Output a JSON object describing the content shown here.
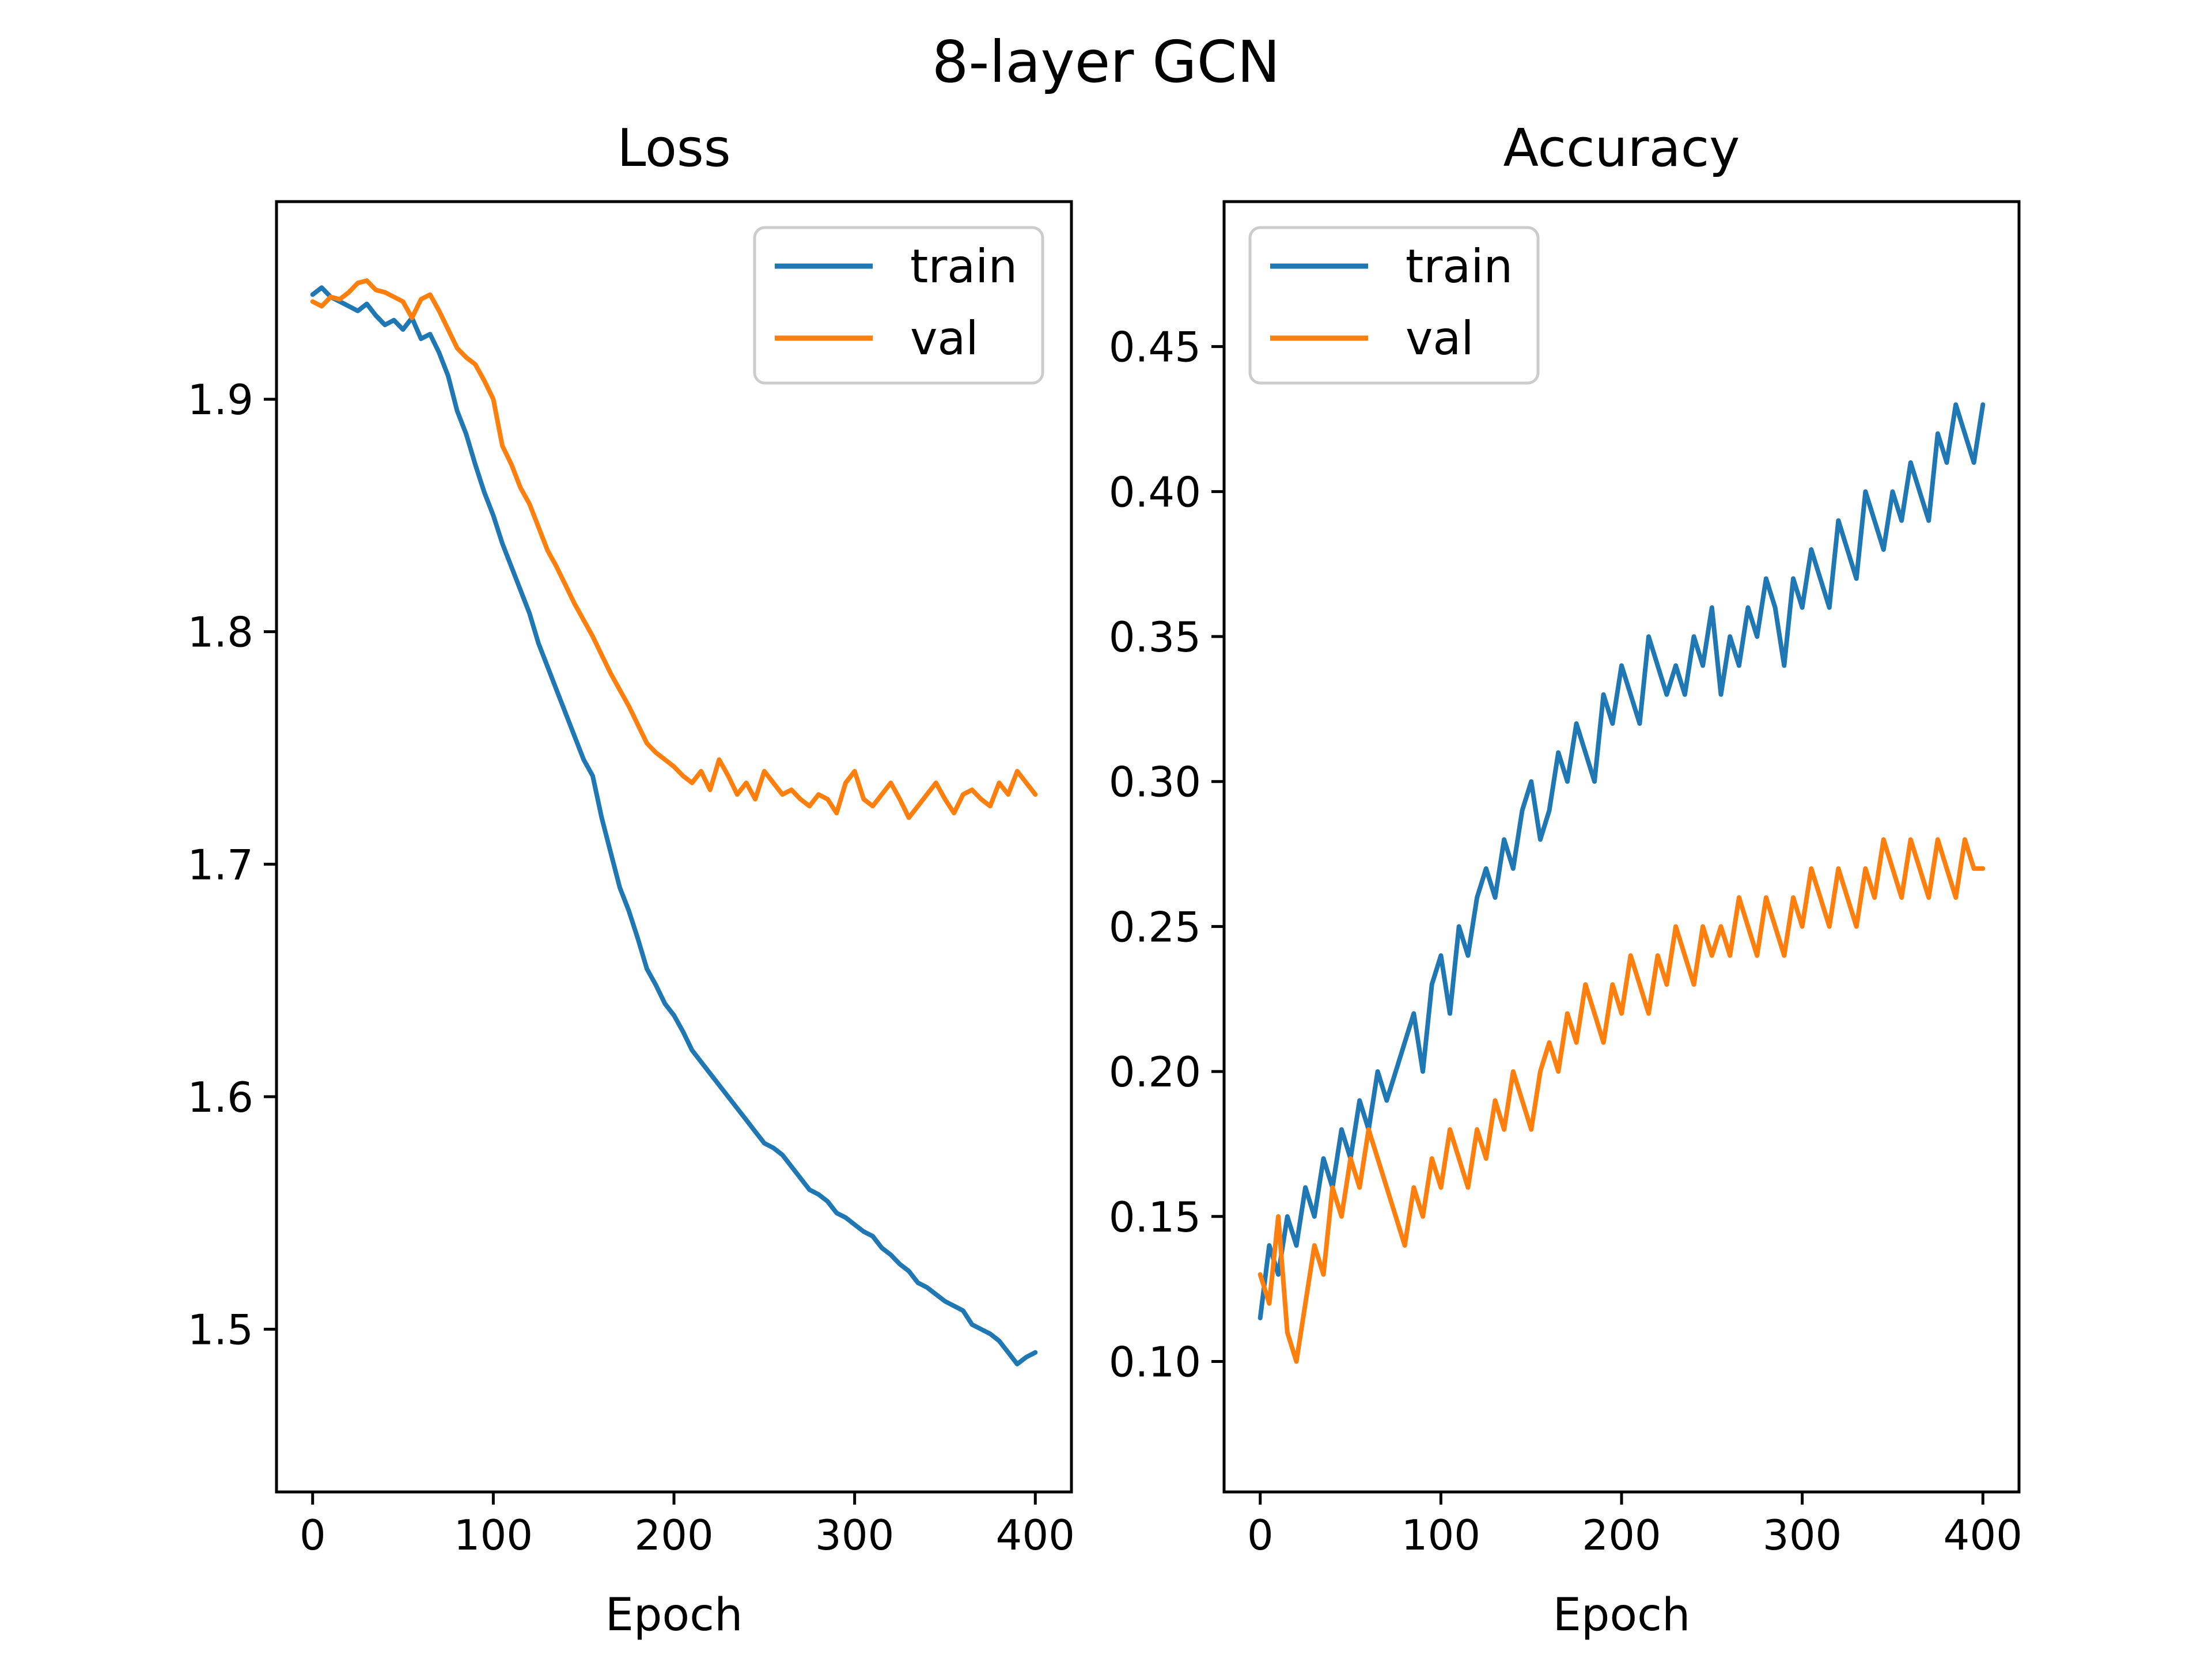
{
  "figure": {
    "title": "8-layer GCN"
  },
  "chart_data": [
    {
      "type": "line",
      "title": "Loss",
      "xlabel": "Epoch",
      "ylabel": "",
      "xlim": [
        -20,
        420
      ],
      "ylim": [
        1.43,
        1.985
      ],
      "xticks": [
        0,
        100,
        200,
        300,
        400
      ],
      "yticks": [
        1.5,
        1.6,
        1.7,
        1.8,
        1.9
      ],
      "xtick_labels": [
        "0",
        "100",
        "200",
        "300",
        "400"
      ],
      "ytick_labels": [
        "1.5",
        "1.6",
        "1.7",
        "1.8",
        "1.9"
      ],
      "grid": false,
      "legend": "top-right",
      "series": [
        {
          "name": "train",
          "color": "#1f77b4",
          "x": [
            0,
            5,
            10,
            15,
            20,
            25,
            30,
            35,
            40,
            45,
            50,
            55,
            60,
            65,
            70,
            75,
            80,
            85,
            90,
            95,
            100,
            105,
            110,
            115,
            120,
            125,
            130,
            135,
            140,
            145,
            150,
            155,
            160,
            165,
            170,
            175,
            180,
            185,
            190,
            195,
            200,
            205,
            210,
            215,
            220,
            225,
            230,
            235,
            240,
            245,
            250,
            255,
            260,
            265,
            270,
            275,
            280,
            285,
            290,
            295,
            300,
            305,
            310,
            315,
            320,
            325,
            330,
            335,
            340,
            345,
            350,
            355,
            360,
            365,
            370,
            375,
            380,
            385,
            390,
            395,
            400
          ],
          "y": [
            1.945,
            1.948,
            1.944,
            1.942,
            1.94,
            1.938,
            1.941,
            1.936,
            1.932,
            1.934,
            1.93,
            1.935,
            1.926,
            1.928,
            1.92,
            1.91,
            1.895,
            1.885,
            1.872,
            1.86,
            1.85,
            1.838,
            1.828,
            1.818,
            1.808,
            1.795,
            1.785,
            1.775,
            1.765,
            1.755,
            1.745,
            1.738,
            1.72,
            1.705,
            1.69,
            1.68,
            1.668,
            1.655,
            1.648,
            1.64,
            1.635,
            1.628,
            1.62,
            1.615,
            1.61,
            1.605,
            1.6,
            1.595,
            1.59,
            1.585,
            1.58,
            1.578,
            1.575,
            1.57,
            1.565,
            1.56,
            1.558,
            1.555,
            1.55,
            1.548,
            1.545,
            1.542,
            1.54,
            1.535,
            1.532,
            1.528,
            1.525,
            1.52,
            1.518,
            1.515,
            1.512,
            1.51,
            1.508,
            1.502,
            1.5,
            1.498,
            1.495,
            1.49,
            1.485,
            1.488,
            1.49
          ]
        },
        {
          "name": "val",
          "color": "#ff7f0e",
          "x": [
            0,
            5,
            10,
            15,
            20,
            25,
            30,
            35,
            40,
            45,
            50,
            55,
            60,
            65,
            70,
            75,
            80,
            85,
            90,
            95,
            100,
            105,
            110,
            115,
            120,
            125,
            130,
            135,
            140,
            145,
            150,
            155,
            160,
            165,
            170,
            175,
            180,
            185,
            190,
            195,
            200,
            205,
            210,
            215,
            220,
            225,
            230,
            235,
            240,
            245,
            250,
            255,
            260,
            265,
            270,
            275,
            280,
            285,
            290,
            295,
            300,
            305,
            310,
            315,
            320,
            325,
            330,
            335,
            340,
            345,
            350,
            355,
            360,
            365,
            370,
            375,
            380,
            385,
            390,
            395,
            400
          ],
          "y": [
            1.942,
            1.94,
            1.944,
            1.943,
            1.946,
            1.95,
            1.951,
            1.947,
            1.946,
            1.944,
            1.942,
            1.935,
            1.943,
            1.945,
            1.938,
            1.93,
            1.922,
            1.918,
            1.915,
            1.908,
            1.9,
            1.88,
            1.872,
            1.862,
            1.855,
            1.845,
            1.835,
            1.828,
            1.82,
            1.812,
            1.805,
            1.798,
            1.79,
            1.782,
            1.775,
            1.768,
            1.76,
            1.752,
            1.748,
            1.745,
            1.742,
            1.738,
            1.735,
            1.74,
            1.732,
            1.745,
            1.738,
            1.73,
            1.735,
            1.728,
            1.74,
            1.735,
            1.73,
            1.732,
            1.728,
            1.725,
            1.73,
            1.728,
            1.722,
            1.735,
            1.74,
            1.728,
            1.725,
            1.73,
            1.735,
            1.728,
            1.72,
            1.725,
            1.73,
            1.735,
            1.728,
            1.722,
            1.73,
            1.732,
            1.728,
            1.725,
            1.735,
            1.73,
            1.74,
            1.735,
            1.73
          ]
        }
      ]
    },
    {
      "type": "line",
      "title": "Accuracy",
      "xlabel": "Epoch",
      "ylabel": "",
      "xlim": [
        -20,
        420
      ],
      "ylim": [
        0.055,
        0.5
      ],
      "xticks": [
        0,
        100,
        200,
        300,
        400
      ],
      "yticks": [
        0.1,
        0.15,
        0.2,
        0.25,
        0.3,
        0.35,
        0.4,
        0.45
      ],
      "xtick_labels": [
        "0",
        "100",
        "200",
        "300",
        "400"
      ],
      "ytick_labels": [
        "0.10",
        "0.15",
        "0.20",
        "0.25",
        "0.30",
        "0.35",
        "0.40",
        "0.45"
      ],
      "grid": false,
      "legend": "top-left",
      "series": [
        {
          "name": "train",
          "color": "#1f77b4",
          "x": [
            0,
            5,
            10,
            15,
            20,
            25,
            30,
            35,
            40,
            45,
            50,
            55,
            60,
            65,
            70,
            75,
            80,
            85,
            90,
            95,
            100,
            105,
            110,
            115,
            120,
            125,
            130,
            135,
            140,
            145,
            150,
            155,
            160,
            165,
            170,
            175,
            180,
            185,
            190,
            195,
            200,
            205,
            210,
            215,
            220,
            225,
            230,
            235,
            240,
            245,
            250,
            255,
            260,
            265,
            270,
            275,
            280,
            285,
            290,
            295,
            300,
            305,
            310,
            315,
            320,
            325,
            330,
            335,
            340,
            345,
            350,
            355,
            360,
            365,
            370,
            375,
            380,
            385,
            390,
            395,
            400
          ],
          "y": [
            0.115,
            0.14,
            0.13,
            0.15,
            0.14,
            0.16,
            0.15,
            0.17,
            0.16,
            0.18,
            0.17,
            0.19,
            0.18,
            0.2,
            0.19,
            0.2,
            0.21,
            0.22,
            0.2,
            0.23,
            0.24,
            0.22,
            0.25,
            0.24,
            0.26,
            0.27,
            0.26,
            0.28,
            0.27,
            0.29,
            0.3,
            0.28,
            0.29,
            0.31,
            0.3,
            0.32,
            0.31,
            0.3,
            0.33,
            0.32,
            0.34,
            0.33,
            0.32,
            0.35,
            0.34,
            0.33,
            0.34,
            0.33,
            0.35,
            0.34,
            0.36,
            0.33,
            0.35,
            0.34,
            0.36,
            0.35,
            0.37,
            0.36,
            0.34,
            0.37,
            0.36,
            0.38,
            0.37,
            0.36,
            0.39,
            0.38,
            0.37,
            0.4,
            0.39,
            0.38,
            0.4,
            0.39,
            0.41,
            0.4,
            0.39,
            0.42,
            0.41,
            0.43,
            0.42,
            0.41,
            0.43
          ]
        },
        {
          "name": "val",
          "color": "#ff7f0e",
          "x": [
            0,
            5,
            10,
            15,
            20,
            25,
            30,
            35,
            40,
            45,
            50,
            55,
            60,
            65,
            70,
            75,
            80,
            85,
            90,
            95,
            100,
            105,
            110,
            115,
            120,
            125,
            130,
            135,
            140,
            145,
            150,
            155,
            160,
            165,
            170,
            175,
            180,
            185,
            190,
            195,
            200,
            205,
            210,
            215,
            220,
            225,
            230,
            235,
            240,
            245,
            250,
            255,
            260,
            265,
            270,
            275,
            280,
            285,
            290,
            295,
            300,
            305,
            310,
            315,
            320,
            325,
            330,
            335,
            340,
            345,
            350,
            355,
            360,
            365,
            370,
            375,
            380,
            385,
            390,
            395,
            400
          ],
          "y": [
            0.13,
            0.12,
            0.15,
            0.11,
            0.1,
            0.12,
            0.14,
            0.13,
            0.16,
            0.15,
            0.17,
            0.16,
            0.18,
            0.17,
            0.16,
            0.15,
            0.14,
            0.16,
            0.15,
            0.17,
            0.16,
            0.18,
            0.17,
            0.16,
            0.18,
            0.17,
            0.19,
            0.18,
            0.2,
            0.19,
            0.18,
            0.2,
            0.21,
            0.2,
            0.22,
            0.21,
            0.23,
            0.22,
            0.21,
            0.23,
            0.22,
            0.24,
            0.23,
            0.22,
            0.24,
            0.23,
            0.25,
            0.24,
            0.23,
            0.25,
            0.24,
            0.25,
            0.24,
            0.26,
            0.25,
            0.24,
            0.26,
            0.25,
            0.24,
            0.26,
            0.25,
            0.27,
            0.26,
            0.25,
            0.27,
            0.26,
            0.25,
            0.27,
            0.26,
            0.28,
            0.27,
            0.26,
            0.28,
            0.27,
            0.26,
            0.28,
            0.27,
            0.26,
            0.28,
            0.27,
            0.27
          ]
        }
      ]
    }
  ]
}
